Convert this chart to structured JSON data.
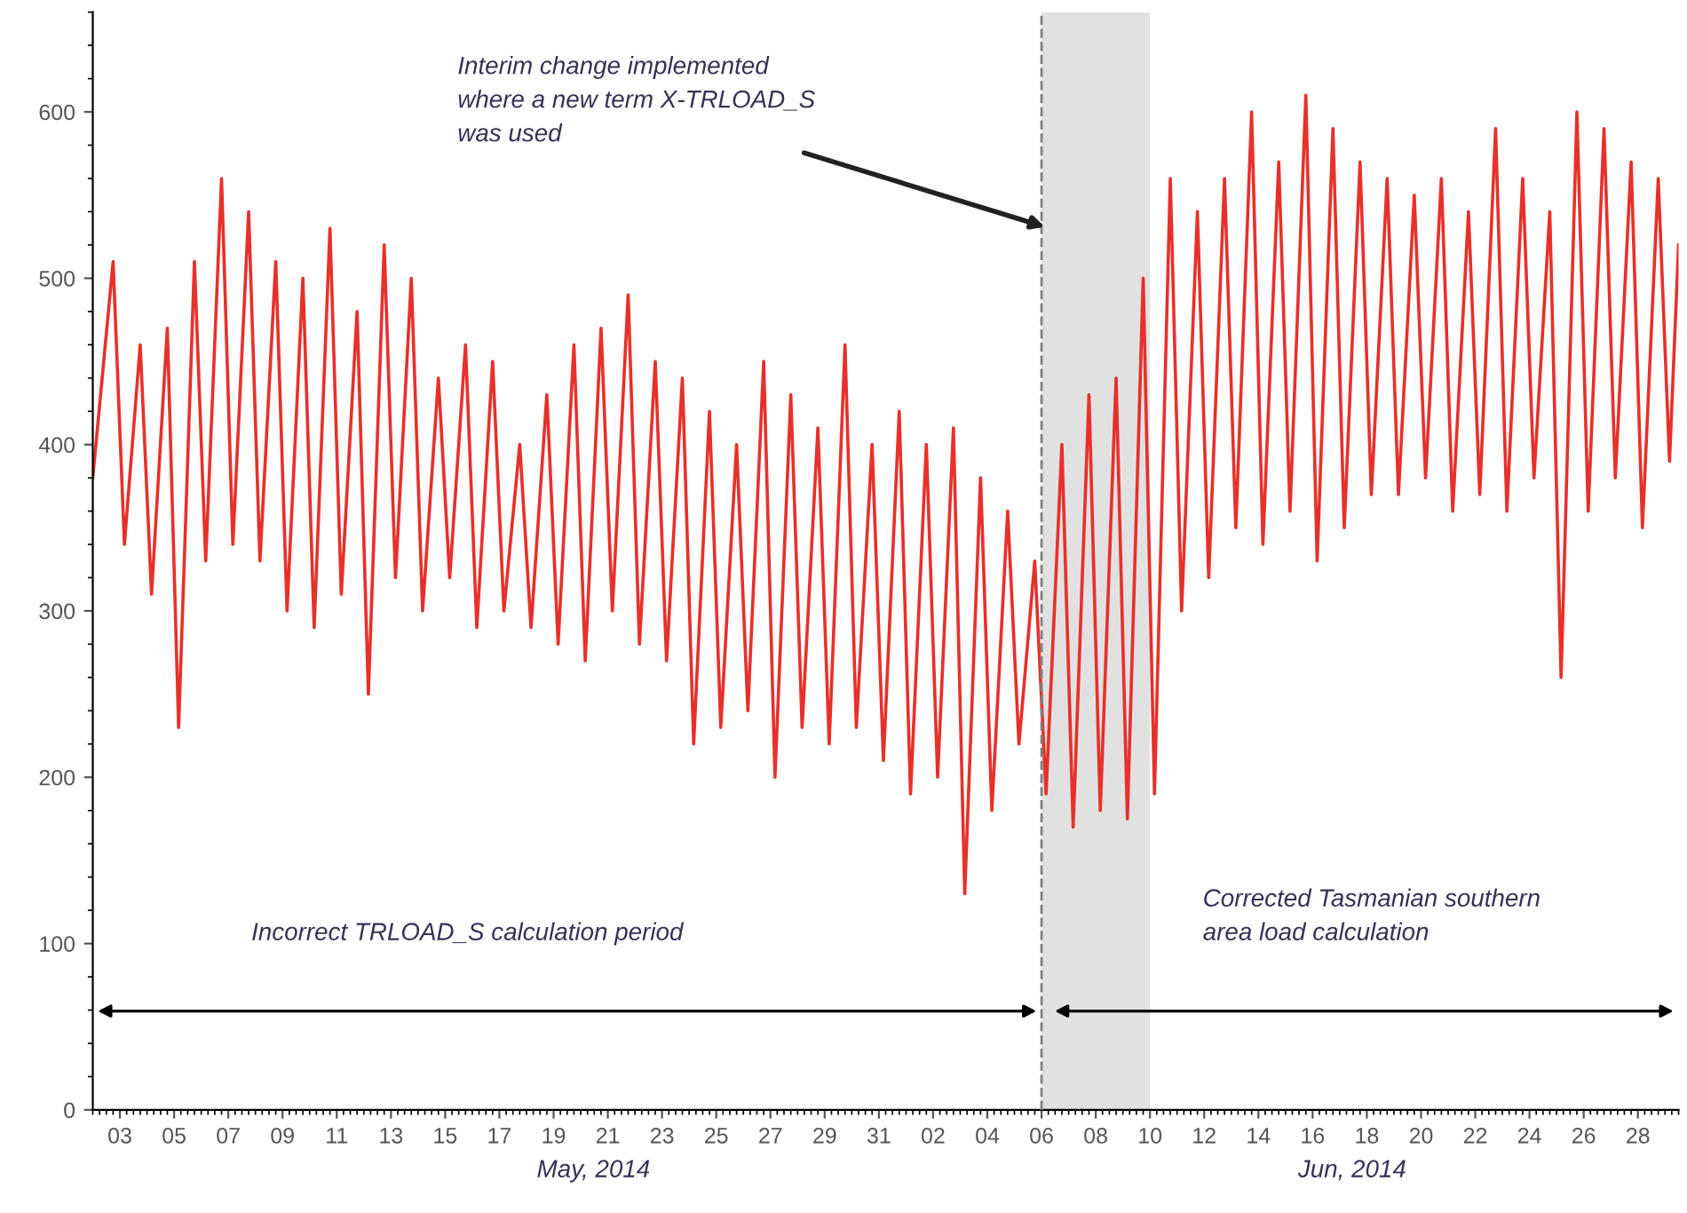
{
  "chart_data": {
    "type": "line",
    "x": [
      "2014-05-02T00:00",
      "2014-05-02T18:00",
      "2014-05-03T04:00",
      "2014-05-03T18:00",
      "2014-05-04T04:00",
      "2014-05-04T18:00",
      "2014-05-05T04:00",
      "2014-05-05T18:00",
      "2014-05-06T04:00",
      "2014-05-06T18:00",
      "2014-05-07T04:00",
      "2014-05-07T18:00",
      "2014-05-08T04:00",
      "2014-05-08T18:00",
      "2014-05-09T04:00",
      "2014-05-09T18:00",
      "2014-05-10T04:00",
      "2014-05-10T18:00",
      "2014-05-11T04:00",
      "2014-05-11T18:00",
      "2014-05-12T04:00",
      "2014-05-12T18:00",
      "2014-05-13T04:00",
      "2014-05-13T18:00",
      "2014-05-14T04:00",
      "2014-05-14T18:00",
      "2014-05-15T04:00",
      "2014-05-15T18:00",
      "2014-05-16T04:00",
      "2014-05-16T18:00",
      "2014-05-17T04:00",
      "2014-05-17T18:00",
      "2014-05-18T04:00",
      "2014-05-18T18:00",
      "2014-05-19T04:00",
      "2014-05-19T18:00",
      "2014-05-20T04:00",
      "2014-05-20T18:00",
      "2014-05-21T04:00",
      "2014-05-21T18:00",
      "2014-05-22T04:00",
      "2014-05-22T18:00",
      "2014-05-23T04:00",
      "2014-05-23T18:00",
      "2014-05-24T04:00",
      "2014-05-24T18:00",
      "2014-05-25T04:00",
      "2014-05-25T18:00",
      "2014-05-26T04:00",
      "2014-05-26T18:00",
      "2014-05-27T04:00",
      "2014-05-27T18:00",
      "2014-05-28T04:00",
      "2014-05-28T18:00",
      "2014-05-29T04:00",
      "2014-05-29T18:00",
      "2014-05-30T04:00",
      "2014-05-30T18:00",
      "2014-05-31T04:00",
      "2014-05-31T18:00",
      "2014-06-01T04:00",
      "2014-06-01T18:00",
      "2014-06-02T04:00",
      "2014-06-02T18:00",
      "2014-06-03T04:00",
      "2014-06-03T18:00",
      "2014-06-04T04:00",
      "2014-06-04T18:00",
      "2014-06-05T04:00",
      "2014-06-05T18:00",
      "2014-06-06T04:00",
      "2014-06-06T18:00",
      "2014-06-07T04:00",
      "2014-06-07T18:00",
      "2014-06-08T04:00",
      "2014-06-08T18:00",
      "2014-06-09T04:00",
      "2014-06-09T18:00",
      "2014-06-10T04:00",
      "2014-06-10T18:00",
      "2014-06-11T04:00",
      "2014-06-11T18:00",
      "2014-06-12T04:00",
      "2014-06-12T18:00",
      "2014-06-13T04:00",
      "2014-06-13T18:00",
      "2014-06-14T04:00",
      "2014-06-14T18:00",
      "2014-06-15T04:00",
      "2014-06-15T18:00",
      "2014-06-16T04:00",
      "2014-06-16T18:00",
      "2014-06-17T04:00",
      "2014-06-17T18:00",
      "2014-06-18T04:00",
      "2014-06-18T18:00",
      "2014-06-19T04:00",
      "2014-06-19T18:00",
      "2014-06-20T04:00",
      "2014-06-20T18:00",
      "2014-06-21T04:00",
      "2014-06-21T18:00",
      "2014-06-22T04:00",
      "2014-06-22T18:00",
      "2014-06-23T04:00",
      "2014-06-23T18:00",
      "2014-06-24T04:00",
      "2014-06-24T18:00",
      "2014-06-25T04:00",
      "2014-06-25T18:00",
      "2014-06-26T04:00",
      "2014-06-26T18:00",
      "2014-06-27T04:00",
      "2014-06-27T18:00",
      "2014-06-28T04:00",
      "2014-06-28T18:00",
      "2014-06-29T04:00",
      "2014-06-29T12:00"
    ],
    "series": [
      {
        "color": "#e8302a",
        "values": [
          380,
          510,
          340,
          460,
          310,
          470,
          230,
          510,
          330,
          560,
          340,
          540,
          330,
          510,
          300,
          500,
          290,
          530,
          310,
          480,
          250,
          520,
          320,
          500,
          300,
          440,
          320,
          460,
          290,
          450,
          300,
          400,
          290,
          430,
          280,
          460,
          270,
          470,
          300,
          490,
          280,
          450,
          270,
          440,
          220,
          420,
          230,
          400,
          240,
          450,
          200,
          430,
          230,
          410,
          220,
          460,
          230,
          400,
          210,
          420,
          190,
          400,
          200,
          410,
          130,
          380,
          180,
          360,
          220,
          330,
          190,
          400,
          170,
          430,
          180,
          440,
          175,
          500,
          190,
          560,
          300,
          540,
          320,
          560,
          350,
          600,
          340,
          570,
          360,
          610,
          330,
          590,
          350,
          570,
          370,
          560,
          370,
          550,
          380,
          560,
          360,
          540,
          370,
          590,
          360,
          560,
          380,
          540,
          260,
          600,
          360,
          590,
          380,
          570,
          350,
          560,
          390,
          520
        ]
      }
    ],
    "xlim": [
      "2014-05-02T00:00",
      "2014-06-29T12:00"
    ],
    "ylim": [
      0,
      660
    ],
    "yticks": [
      0,
      100,
      200,
      300,
      400,
      500,
      600
    ],
    "xticks": [
      {
        "value": "2014-05-03",
        "label": "03"
      },
      {
        "value": "2014-05-05",
        "label": "05"
      },
      {
        "value": "2014-05-07",
        "label": "07"
      },
      {
        "value": "2014-05-09",
        "label": "09"
      },
      {
        "value": "2014-05-11",
        "label": "11"
      },
      {
        "value": "2014-05-13",
        "label": "13"
      },
      {
        "value": "2014-05-15",
        "label": "15"
      },
      {
        "value": "2014-05-17",
        "label": "17"
      },
      {
        "value": "2014-05-19",
        "label": "19"
      },
      {
        "value": "2014-05-21",
        "label": "21"
      },
      {
        "value": "2014-05-23",
        "label": "23"
      },
      {
        "value": "2014-05-25",
        "label": "25"
      },
      {
        "value": "2014-05-27",
        "label": "27"
      },
      {
        "value": "2014-05-29",
        "label": "29"
      },
      {
        "value": "2014-05-31",
        "label": "31"
      },
      {
        "value": "2014-06-02",
        "label": "02"
      },
      {
        "value": "2014-06-04",
        "label": "04"
      },
      {
        "value": "2014-06-06",
        "label": "06"
      },
      {
        "value": "2014-06-08",
        "label": "08"
      },
      {
        "value": "2014-06-10",
        "label": "10"
      },
      {
        "value": "2014-06-12",
        "label": "12"
      },
      {
        "value": "2014-06-14",
        "label": "14"
      },
      {
        "value": "2014-06-16",
        "label": "16"
      },
      {
        "value": "2014-06-18",
        "label": "18"
      },
      {
        "value": "2014-06-20",
        "label": "20"
      },
      {
        "value": "2014-06-22",
        "label": "22"
      },
      {
        "value": "2014-06-24",
        "label": "24"
      },
      {
        "value": "2014-06-26",
        "label": "26"
      },
      {
        "value": "2014-06-28",
        "label": "28"
      }
    ],
    "bands": [
      {
        "axis": "x",
        "from": "2014-06-06",
        "to": "2014-06-10",
        "color": "#d9d9d9"
      }
    ],
    "ref_lines": [
      {
        "axis": "x",
        "value": "2014-06-06",
        "color": "#808080",
        "line_style": "dashed"
      }
    ],
    "annotations": [
      "Interim change implemented\nwhere a new term X-TRLOAD_S\nwas used",
      "Incorrect TRLOAD_S calculation period",
      "Corrected Tasmanian southern\narea load calculation",
      "May, 2014",
      "Jun, 2014"
    ],
    "grid": false,
    "legend": false,
    "marker": "none",
    "line_style": "solid"
  }
}
